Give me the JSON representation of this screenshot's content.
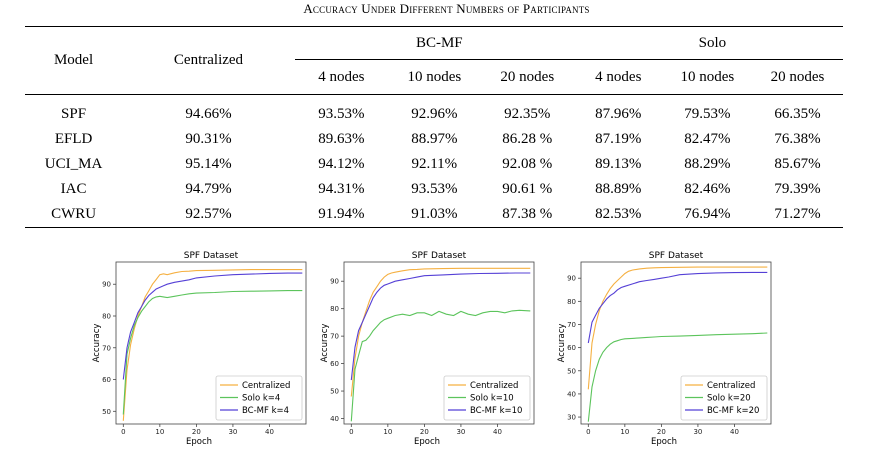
{
  "caption": "Accuracy Under Different Numbers of Participants",
  "table": {
    "col_model": "Model",
    "col_centralized": "Centralized",
    "group_bcmf": "BC-MF",
    "group_solo": "Solo",
    "sub_headers": [
      "4 nodes",
      "10 nodes",
      "20 nodes",
      "4 nodes",
      "10 nodes",
      "20 nodes"
    ],
    "rows": [
      {
        "model": "SPF",
        "centralized": "94.66%",
        "vals": [
          "93.53%",
          "92.96%",
          "92.35%",
          "87.96%",
          "79.53%",
          "66.35%"
        ]
      },
      {
        "model": "EFLD",
        "centralized": "90.31%",
        "vals": [
          "89.63%",
          "88.97%",
          "86.28 %",
          "87.19%",
          "82.47%",
          "76.38%"
        ]
      },
      {
        "model": "UCI_MA",
        "centralized": "95.14%",
        "vals": [
          "94.12%",
          "92.11%",
          "92.08 %",
          "89.13%",
          "88.29%",
          "85.67%"
        ]
      },
      {
        "model": "IAC",
        "centralized": "94.79%",
        "vals": [
          "94.31%",
          "93.53%",
          "90.61 %",
          "88.89%",
          "82.46%",
          "79.39%"
        ]
      },
      {
        "model": "CWRU",
        "centralized": "92.57%",
        "vals": [
          "91.94%",
          "91.03%",
          "87.38 %",
          "82.53%",
          "76.94%",
          "71.27%"
        ]
      }
    ]
  },
  "chart_data": [
    {
      "type": "line",
      "title": "SPF Dataset",
      "xlabel": "Epoch",
      "ylabel": "Accuracy",
      "xlim": [
        -2,
        50
      ],
      "ylim": [
        46,
        97
      ],
      "xticks": [
        0,
        10,
        20,
        30,
        40
      ],
      "yticks": [
        50,
        60,
        70,
        80,
        90
      ],
      "legend_position": "bottom-right",
      "colors": [
        "#f5b042",
        "#5cc45c",
        "#5540d6"
      ],
      "series": [
        {
          "name": "Centralized",
          "x": [
            0,
            1,
            2,
            3,
            4,
            5,
            6,
            7,
            8,
            9,
            10,
            11,
            12,
            14,
            16,
            18,
            20,
            25,
            30,
            35,
            40,
            45,
            49
          ],
          "y": [
            47,
            63,
            71,
            76,
            80,
            83,
            86,
            88,
            90,
            91.5,
            93,
            93.3,
            93,
            93.6,
            94,
            94.1,
            94.3,
            94.4,
            94.5,
            94.6,
            94.6,
            94.6,
            94.6
          ]
        },
        {
          "name": "Solo k=4",
          "x": [
            0,
            1,
            2,
            3,
            4,
            5,
            6,
            7,
            8,
            9,
            10,
            11,
            12,
            14,
            16,
            18,
            20,
            25,
            30,
            35,
            40,
            45,
            49
          ],
          "y": [
            49,
            68,
            73,
            77,
            79.5,
            81.5,
            83,
            84.5,
            85.5,
            86,
            86.2,
            86,
            85.8,
            86.2,
            86.6,
            87,
            87.2,
            87.4,
            87.7,
            87.8,
            87.9,
            88,
            88
          ]
        },
        {
          "name": "BC-MF k=4",
          "x": [
            0,
            1,
            2,
            3,
            4,
            5,
            6,
            7,
            8,
            9,
            10,
            11,
            12,
            14,
            16,
            18,
            20,
            25,
            30,
            35,
            40,
            45,
            49
          ],
          "y": [
            60,
            70,
            75,
            78,
            81,
            83,
            85,
            86.5,
            87.5,
            88.5,
            89,
            89.5,
            90,
            90.6,
            91,
            91.4,
            92,
            92.6,
            93,
            93.2,
            93.4,
            93.5,
            93.5
          ]
        }
      ]
    },
    {
      "type": "line",
      "title": "SPF Dataset",
      "xlabel": "Epoch",
      "ylabel": "Accuracy",
      "xlim": [
        -2,
        50
      ],
      "ylim": [
        38,
        97
      ],
      "xticks": [
        0,
        10,
        20,
        30,
        40
      ],
      "yticks": [
        40,
        50,
        60,
        70,
        80,
        90
      ],
      "legend_position": "bottom-right",
      "colors": [
        "#f5b042",
        "#5cc45c",
        "#5540d6"
      ],
      "series": [
        {
          "name": "Centralized",
          "x": [
            0,
            1,
            2,
            3,
            4,
            5,
            6,
            7,
            8,
            9,
            10,
            11,
            12,
            14,
            16,
            18,
            20,
            25,
            30,
            35,
            40,
            45,
            49
          ],
          "y": [
            48,
            62,
            70,
            75,
            79,
            83,
            86,
            88,
            90,
            91.5,
            92.5,
            93,
            93.3,
            93.8,
            94.2,
            94.3,
            94.5,
            94.6,
            94.7,
            94.7,
            94.7,
            94.7,
            94.7
          ]
        },
        {
          "name": "Solo k=10",
          "x": [
            0,
            1,
            2,
            3,
            4,
            5,
            6,
            7,
            8,
            9,
            10,
            12,
            14,
            16,
            18,
            20,
            22,
            24,
            26,
            28,
            30,
            32,
            34,
            36,
            38,
            40,
            42,
            44,
            46,
            49
          ],
          "y": [
            39,
            58,
            63,
            68,
            68.5,
            70,
            72,
            73.5,
            75,
            76,
            76.5,
            77.5,
            78,
            77.5,
            78.5,
            78.5,
            77.5,
            79,
            78,
            77.5,
            79,
            78,
            77.5,
            78.5,
            79,
            79,
            78.5,
            79.2,
            79.4,
            79.2
          ]
        },
        {
          "name": "BC-MF k=10",
          "x": [
            0,
            1,
            2,
            3,
            4,
            5,
            6,
            7,
            8,
            9,
            10,
            12,
            14,
            16,
            18,
            20,
            25,
            30,
            35,
            40,
            45,
            49
          ],
          "y": [
            54,
            66,
            72,
            75,
            78,
            81,
            84,
            86,
            87.5,
            88.5,
            89,
            90,
            90.5,
            91,
            91.5,
            92,
            92.3,
            92.6,
            92.8,
            92.9,
            93,
            93
          ]
        }
      ]
    },
    {
      "type": "line",
      "title": "SPF Dataset",
      "xlabel": "Epoch",
      "ylabel": "Accuracy",
      "xlim": [
        -2,
        50
      ],
      "ylim": [
        27,
        97
      ],
      "xticks": [
        0,
        10,
        20,
        30,
        40
      ],
      "yticks": [
        30,
        40,
        50,
        60,
        70,
        80,
        90
      ],
      "legend_position": "bottom-right",
      "colors": [
        "#f5b042",
        "#5cc45c",
        "#5540d6"
      ],
      "series": [
        {
          "name": "Centralized",
          "x": [
            0,
            1,
            2,
            3,
            4,
            5,
            6,
            7,
            8,
            9,
            10,
            11,
            12,
            14,
            16,
            18,
            20,
            25,
            30,
            35,
            40,
            45,
            49
          ],
          "y": [
            42,
            62,
            70,
            76,
            80,
            83,
            85.5,
            87.5,
            89,
            90.5,
            92,
            93,
            93.5,
            94,
            94.3,
            94.5,
            94.6,
            94.7,
            94.8,
            94.8,
            94.8,
            94.8,
            94.8
          ]
        },
        {
          "name": "Solo k=20",
          "x": [
            0,
            1,
            2,
            3,
            4,
            5,
            6,
            7,
            8,
            9,
            10,
            12,
            14,
            16,
            18,
            20,
            25,
            30,
            35,
            40,
            45,
            49
          ],
          "y": [
            28,
            43,
            50,
            55,
            58,
            60,
            61.5,
            62.5,
            63,
            63.5,
            63.8,
            64,
            64.2,
            64.4,
            64.6,
            64.8,
            65,
            65.3,
            65.6,
            65.8,
            66,
            66.3
          ]
        },
        {
          "name": "BC-MF k=20",
          "x": [
            0,
            1,
            2,
            3,
            4,
            5,
            6,
            7,
            8,
            9,
            10,
            12,
            14,
            16,
            18,
            20,
            22,
            25,
            30,
            35,
            40,
            45,
            49
          ],
          "y": [
            62,
            71,
            74,
            77,
            79,
            81,
            82.5,
            83.5,
            85,
            86,
            86.5,
            87.5,
            88.5,
            89,
            89.5,
            90,
            90.5,
            91.5,
            92,
            92.3,
            92.4,
            92.5,
            92.5
          ]
        }
      ]
    }
  ]
}
